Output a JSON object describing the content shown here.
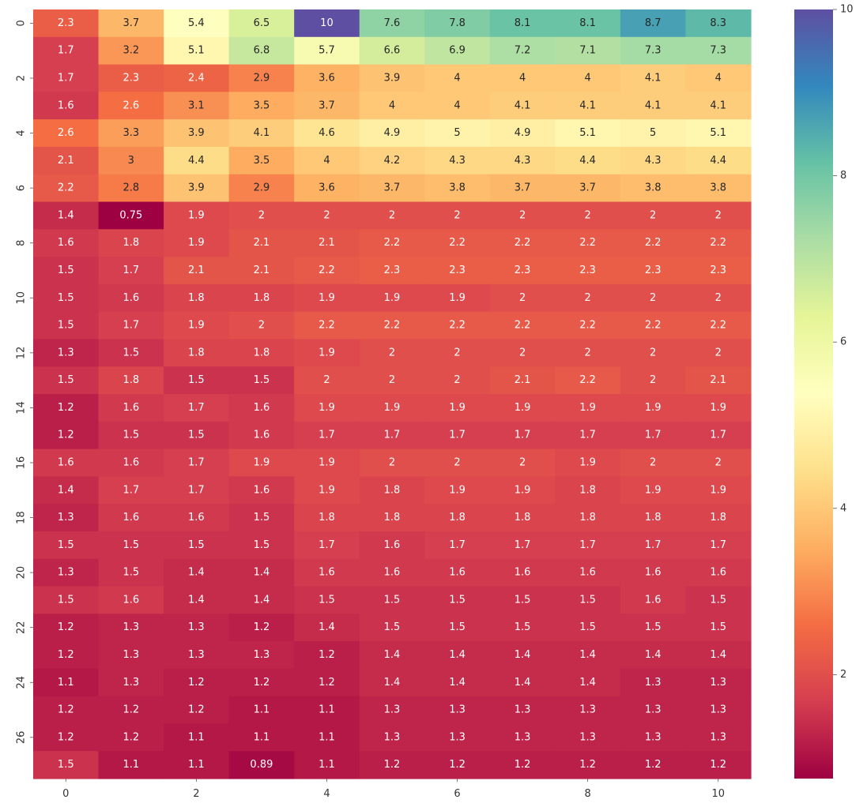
{
  "chart_data": {
    "type": "heatmap",
    "title": "",
    "xlabel": "",
    "ylabel": "",
    "colormap": "Spectral",
    "color_range": [
      0.75,
      10
    ],
    "colorbar_ticks": [
      2,
      4,
      6,
      8,
      10
    ],
    "x_tick_labels": [
      "0",
      "2",
      "4",
      "6",
      "8",
      "10"
    ],
    "y_tick_labels": [
      "0",
      "2",
      "4",
      "6",
      "8",
      "10",
      "12",
      "14",
      "16",
      "18",
      "20",
      "22",
      "24",
      "26"
    ],
    "columns": 11,
    "rows": 28,
    "values": [
      [
        2.3,
        3.7,
        5.4,
        6.5,
        10,
        7.6,
        7.8,
        8.1,
        8.1,
        8.7,
        8.3
      ],
      [
        1.7,
        3.2,
        5.1,
        6.8,
        5.7,
        6.6,
        6.9,
        7.2,
        7.1,
        7.3,
        7.3
      ],
      [
        1.7,
        2.3,
        2.4,
        2.9,
        3.6,
        3.9,
        4,
        4,
        4,
        4.1,
        4
      ],
      [
        1.6,
        2.6,
        3.1,
        3.5,
        3.7,
        4,
        4,
        4.1,
        4.1,
        4.1,
        4.1
      ],
      [
        2.6,
        3.3,
        3.9,
        4.1,
        4.6,
        4.9,
        5,
        4.9,
        5.1,
        5,
        5.1
      ],
      [
        2.1,
        3,
        4.4,
        3.5,
        4,
        4.2,
        4.3,
        4.3,
        4.4,
        4.3,
        4.4
      ],
      [
        2.2,
        2.8,
        3.9,
        2.9,
        3.6,
        3.7,
        3.8,
        3.7,
        3.7,
        3.8,
        3.8
      ],
      [
        1.4,
        0.75,
        1.9,
        2,
        2,
        2,
        2,
        2,
        2,
        2,
        2
      ],
      [
        1.6,
        1.8,
        1.9,
        2.1,
        2.1,
        2.2,
        2.2,
        2.2,
        2.2,
        2.2,
        2.2
      ],
      [
        1.5,
        1.7,
        2.1,
        2.1,
        2.2,
        2.3,
        2.3,
        2.3,
        2.3,
        2.3,
        2.3
      ],
      [
        1.5,
        1.6,
        1.8,
        1.8,
        1.9,
        1.9,
        1.9,
        2,
        2,
        2,
        2
      ],
      [
        1.5,
        1.7,
        1.9,
        2,
        2.2,
        2.2,
        2.2,
        2.2,
        2.2,
        2.2,
        2.2
      ],
      [
        1.3,
        1.5,
        1.8,
        1.8,
        1.9,
        2,
        2,
        2,
        2,
        2,
        2
      ],
      [
        1.5,
        1.8,
        1.5,
        1.5,
        2,
        2,
        2,
        2.1,
        2.2,
        2,
        2.1
      ],
      [
        1.2,
        1.6,
        1.7,
        1.6,
        1.9,
        1.9,
        1.9,
        1.9,
        1.9,
        1.9,
        1.9
      ],
      [
        1.2,
        1.5,
        1.5,
        1.6,
        1.7,
        1.7,
        1.7,
        1.7,
        1.7,
        1.7,
        1.7
      ],
      [
        1.6,
        1.6,
        1.7,
        1.9,
        1.9,
        2,
        2,
        2,
        1.9,
        2,
        2
      ],
      [
        1.4,
        1.7,
        1.7,
        1.6,
        1.9,
        1.8,
        1.9,
        1.9,
        1.8,
        1.9,
        1.9
      ],
      [
        1.3,
        1.6,
        1.6,
        1.5,
        1.8,
        1.8,
        1.8,
        1.8,
        1.8,
        1.8,
        1.8
      ],
      [
        1.5,
        1.5,
        1.5,
        1.5,
        1.7,
        1.6,
        1.7,
        1.7,
        1.7,
        1.7,
        1.7
      ],
      [
        1.3,
        1.5,
        1.4,
        1.4,
        1.6,
        1.6,
        1.6,
        1.6,
        1.6,
        1.6,
        1.6
      ],
      [
        1.5,
        1.6,
        1.4,
        1.4,
        1.5,
        1.5,
        1.5,
        1.5,
        1.5,
        1.6,
        1.5
      ],
      [
        1.2,
        1.3,
        1.3,
        1.2,
        1.4,
        1.5,
        1.5,
        1.5,
        1.5,
        1.5,
        1.5
      ],
      [
        1.2,
        1.3,
        1.3,
        1.3,
        1.2,
        1.4,
        1.4,
        1.4,
        1.4,
        1.4,
        1.4
      ],
      [
        1.1,
        1.3,
        1.2,
        1.2,
        1.2,
        1.4,
        1.4,
        1.4,
        1.4,
        1.3,
        1.3
      ],
      [
        1.2,
        1.2,
        1.2,
        1.1,
        1.1,
        1.3,
        1.3,
        1.3,
        1.3,
        1.3,
        1.3
      ],
      [
        1.2,
        1.2,
        1.1,
        1.1,
        1.1,
        1.3,
        1.3,
        1.3,
        1.3,
        1.3,
        1.3
      ],
      [
        1.5,
        1.1,
        1.1,
        0.89,
        1.1,
        1.2,
        1.2,
        1.2,
        1.2,
        1.2,
        1.2
      ]
    ]
  }
}
